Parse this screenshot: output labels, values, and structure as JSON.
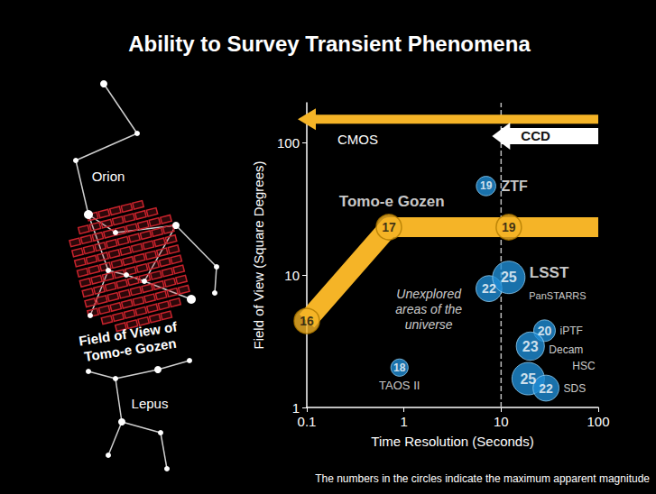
{
  "title": "Ability to Survey Transient Phenomena",
  "footnote": "The numbers in the circles indicate the maximum apparent magnitude",
  "sky_map": {
    "constellations": [
      "Orion",
      "Lepus"
    ],
    "field_label": "Field of View of Tomo-e Gozen",
    "field_color": "#c8232c"
  },
  "chart_data": {
    "type": "scatter",
    "x_label": "Time Resolution (Seconds)",
    "y_label": "Field of View (Square Degrees)",
    "log": true,
    "grid": false,
    "xlim": [
      0.1,
      100
    ],
    "ylim": [
      1,
      200
    ],
    "xticks": [
      0.1,
      1,
      10,
      100
    ],
    "yticks": [
      1,
      10,
      100
    ],
    "divider_x": 10,
    "arrows": [
      {
        "label": "CMOS",
        "color": "#f5b427",
        "from": 100,
        "to": 0.1,
        "y": 150
      },
      {
        "label": "CCD",
        "color": "#ffffff",
        "from": 100,
        "to": 10,
        "y": 112
      }
    ],
    "band": {
      "color": "#f5b427",
      "x": [
        0.1,
        0.7,
        12,
        100
      ],
      "values": [
        4.5,
        23,
        23,
        23
      ],
      "magnitudes": [
        16,
        17,
        19,
        null
      ]
    },
    "points": {
      "color": "#1f8dd6",
      "labels": [
        "ZTF",
        "PanSTARRS",
        "LSST",
        "iPTF",
        "Decam",
        "HSC",
        "SDS",
        "TAOS II"
      ],
      "x": [
        7,
        7.5,
        12,
        28,
        20,
        19,
        29,
        0.9
      ],
      "values": [
        47,
        7.9,
        9.6,
        3.8,
        2.9,
        1.65,
        1.4,
        2
      ],
      "magnitudes": [
        19,
        22,
        25,
        20,
        23,
        25,
        22,
        18
      ]
    },
    "annotations": [
      {
        "text": "Tomo-e Gozen",
        "x": 0.75,
        "y": 36
      },
      {
        "text": "Unexplored areas of the universe",
        "x": 1.8,
        "y": 5.5
      }
    ]
  }
}
